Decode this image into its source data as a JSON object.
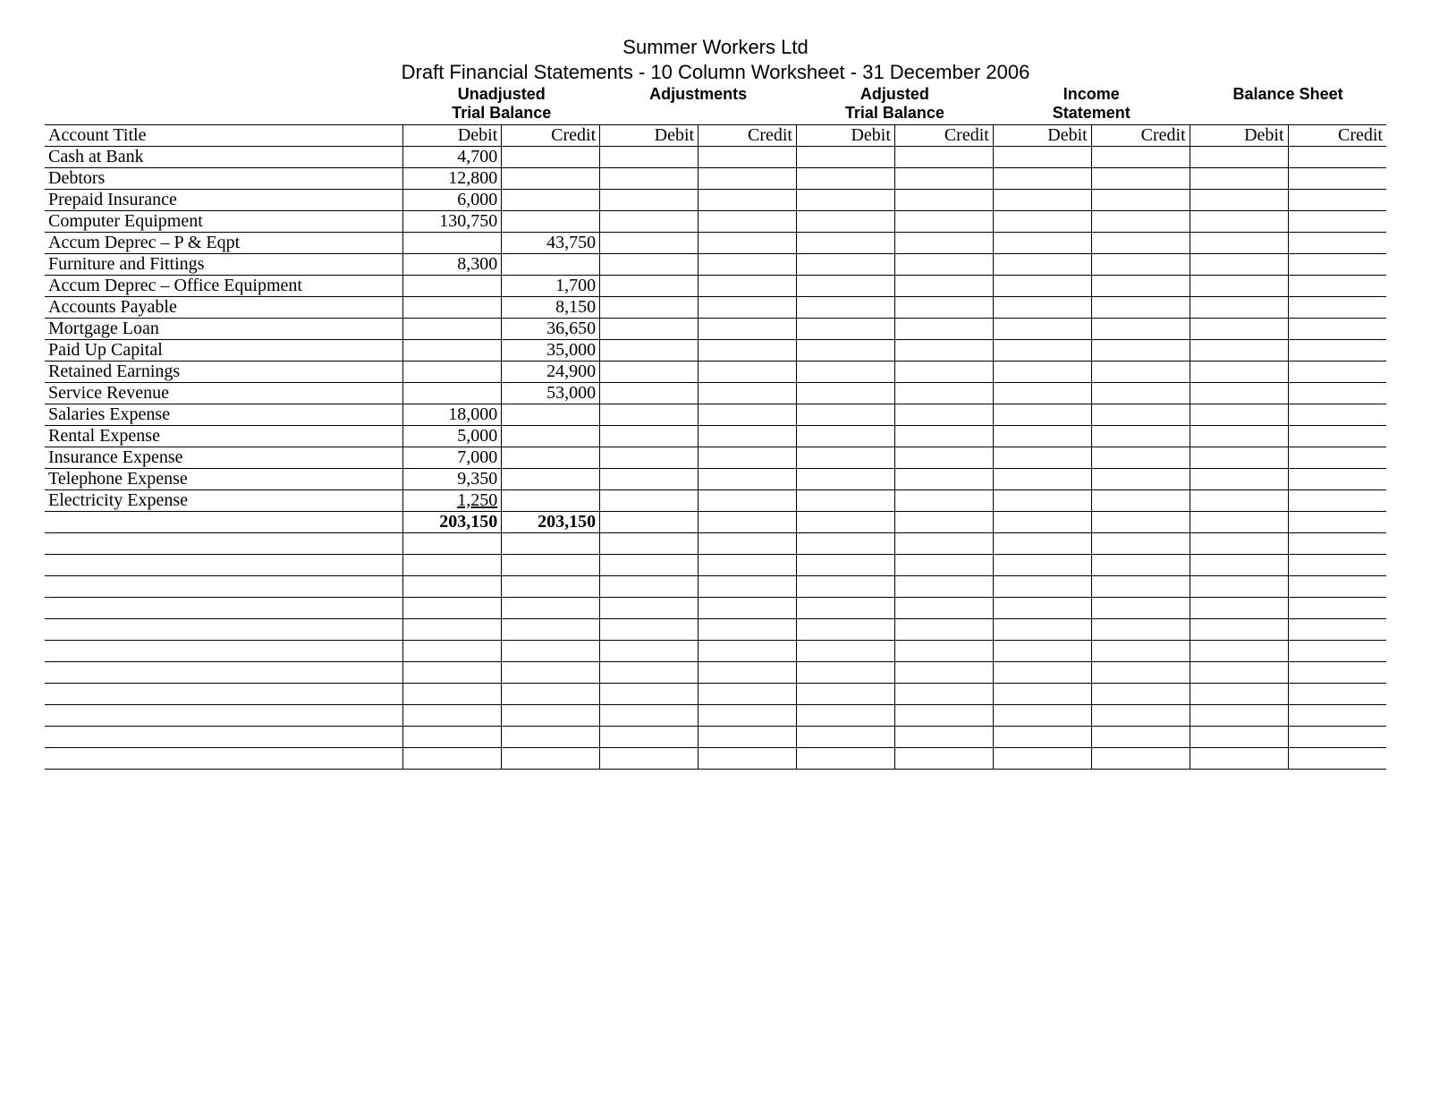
{
  "header": {
    "title": "Summer Workers Ltd",
    "subtitle": "Draft Financial Statements - 10 Column Worksheet - 31 December 2006"
  },
  "groups": [
    {
      "label1": "Unadjusted",
      "label2": "Trial Balance"
    },
    {
      "label1": "Adjustments",
      "label2": ""
    },
    {
      "label1": "Adjusted",
      "label2": "Trial Balance"
    },
    {
      "label1": "Income",
      "label2": "Statement"
    },
    {
      "label1": "Balance Sheet",
      "label2": ""
    }
  ],
  "subheaders": {
    "account": "Account Title",
    "debit": "Debit",
    "credit": "Credit"
  },
  "rows": [
    {
      "account": "Cash at Bank",
      "utb_d": "4,700",
      "utb_c": ""
    },
    {
      "account": "Debtors",
      "utb_d": "12,800",
      "utb_c": ""
    },
    {
      "account": "Prepaid Insurance",
      "utb_d": "6,000",
      "utb_c": ""
    },
    {
      "account": "Computer Equipment",
      "utb_d": "130,750",
      "utb_c": ""
    },
    {
      "account": "Accum Deprec – P & Eqpt",
      "utb_d": "",
      "utb_c": "43,750"
    },
    {
      "account": "Furniture and Fittings",
      "utb_d": "8,300",
      "utb_c": ""
    },
    {
      "account": "Accum Deprec – Office Equipment",
      "utb_d": "",
      "utb_c": "1,700"
    },
    {
      "account": "Accounts Payable",
      "utb_d": "",
      "utb_c": "8,150"
    },
    {
      "account": "Mortgage Loan",
      "utb_d": "",
      "utb_c": "36,650"
    },
    {
      "account": "Paid Up Capital",
      "utb_d": "",
      "utb_c": "35,000"
    },
    {
      "account": "Retained Earnings",
      "utb_d": "",
      "utb_c": "24,900"
    },
    {
      "account": "Service Revenue",
      "utb_d": "",
      "utb_c": "53,000"
    },
    {
      "account": "Salaries Expense",
      "utb_d": "18,000",
      "utb_c": ""
    },
    {
      "account": "Rental Expense",
      "utb_d": "5,000",
      "utb_c": ""
    },
    {
      "account": "Insurance Expense",
      "utb_d": "7,000",
      "utb_c": ""
    },
    {
      "account": "Telephone Expense",
      "utb_d": "9,350",
      "utb_c": ""
    },
    {
      "account": "Electricity Expense",
      "utb_d": "1,250",
      "utb_c": "",
      "underline_d": true
    }
  ],
  "totals": {
    "utb_d": "203,150",
    "utb_c": "203,150"
  },
  "blank_rows": 11,
  "style": {
    "page_bg": "#ffffff",
    "text_color": "#000000",
    "border_color": "#000000",
    "title_font": "Arial",
    "body_font": "Times New Roman",
    "title_fontsize": 22,
    "group_header_fontsize": 18,
    "cell_fontsize": 20
  }
}
